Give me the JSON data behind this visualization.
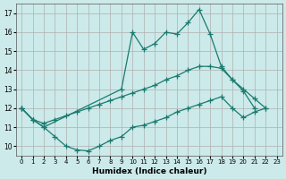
{
  "xlabel": "Humidex (Indice chaleur)",
  "bg_color": "#cceaea",
  "grid_color": "#b0b0b0",
  "line_color": "#1a7a6e",
  "upper_x": [
    0,
    1,
    2,
    3,
    4,
    5,
    6,
    7,
    8,
    9,
    10,
    11,
    12,
    13,
    14,
    15,
    16,
    17,
    18,
    19,
    20,
    21,
    22,
    23
  ],
  "upper_y": [
    12.0,
    11.4,
    11.0,
    13.0,
    16.0,
    15.1,
    15.4,
    16.0,
    15.9,
    16.5,
    17.2,
    15.9,
    14.2,
    13.5,
    12.9,
    12.0,
    null,
    null,
    null,
    null,
    null,
    null,
    null,
    null
  ],
  "mid_x": [
    0,
    1,
    2,
    3,
    4,
    5,
    6,
    7,
    8,
    9,
    10,
    11,
    12,
    13,
    14,
    15,
    16,
    17,
    18,
    19,
    20,
    21,
    22,
    23
  ],
  "mid_y": [
    12.0,
    11.4,
    11.2,
    11.4,
    11.6,
    11.8,
    12.0,
    12.2,
    12.4,
    12.6,
    12.8,
    13.0,
    13.2,
    13.5,
    13.7,
    14.0,
    14.2,
    14.2,
    14.1,
    13.5,
    13.0,
    12.5,
    12.0,
    null
  ],
  "lower_x": [
    0,
    1,
    2,
    3,
    4,
    5,
    6,
    7,
    8,
    9,
    10,
    11,
    12,
    13,
    14,
    15,
    16,
    17,
    18,
    19,
    20,
    21,
    22,
    23
  ],
  "lower_y": [
    12.0,
    11.4,
    11.0,
    10.5,
    10.0,
    9.8,
    9.75,
    10.0,
    10.3,
    10.5,
    11.0,
    11.1,
    11.3,
    11.5,
    11.8,
    12.0,
    12.2,
    12.4,
    12.6,
    12.0,
    11.5,
    11.8,
    12.0,
    null
  ],
  "ylim": [
    9.5,
    17.5
  ],
  "yticks": [
    10,
    11,
    12,
    13,
    14,
    15,
    16,
    17
  ],
  "xlim": [
    -0.5,
    23.5
  ],
  "xticks": [
    0,
    1,
    2,
    3,
    4,
    5,
    6,
    7,
    8,
    9,
    10,
    11,
    12,
    13,
    14,
    15,
    16,
    17,
    18,
    19,
    20,
    21,
    22,
    23
  ]
}
